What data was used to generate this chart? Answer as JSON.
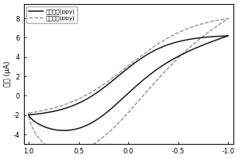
{
  "title": "",
  "xlabel": "",
  "ylabel": "电流 (μA)",
  "legend_solid": "有聚吨啠(ppy)",
  "legend_dashed": "无聚吨啠(ppy)",
  "xlim": [
    1.05,
    -1.05
  ],
  "ylim": [
    -5,
    9.5
  ],
  "xticks": [
    1.0,
    0.5,
    0.0,
    -0.5,
    -1.0
  ],
  "yticks": [
    -4,
    -2,
    0,
    2,
    4,
    6,
    8
  ],
  "background_color": "#ffffff",
  "solid_color": "#1a1a1a",
  "dashed_color": "#888888"
}
